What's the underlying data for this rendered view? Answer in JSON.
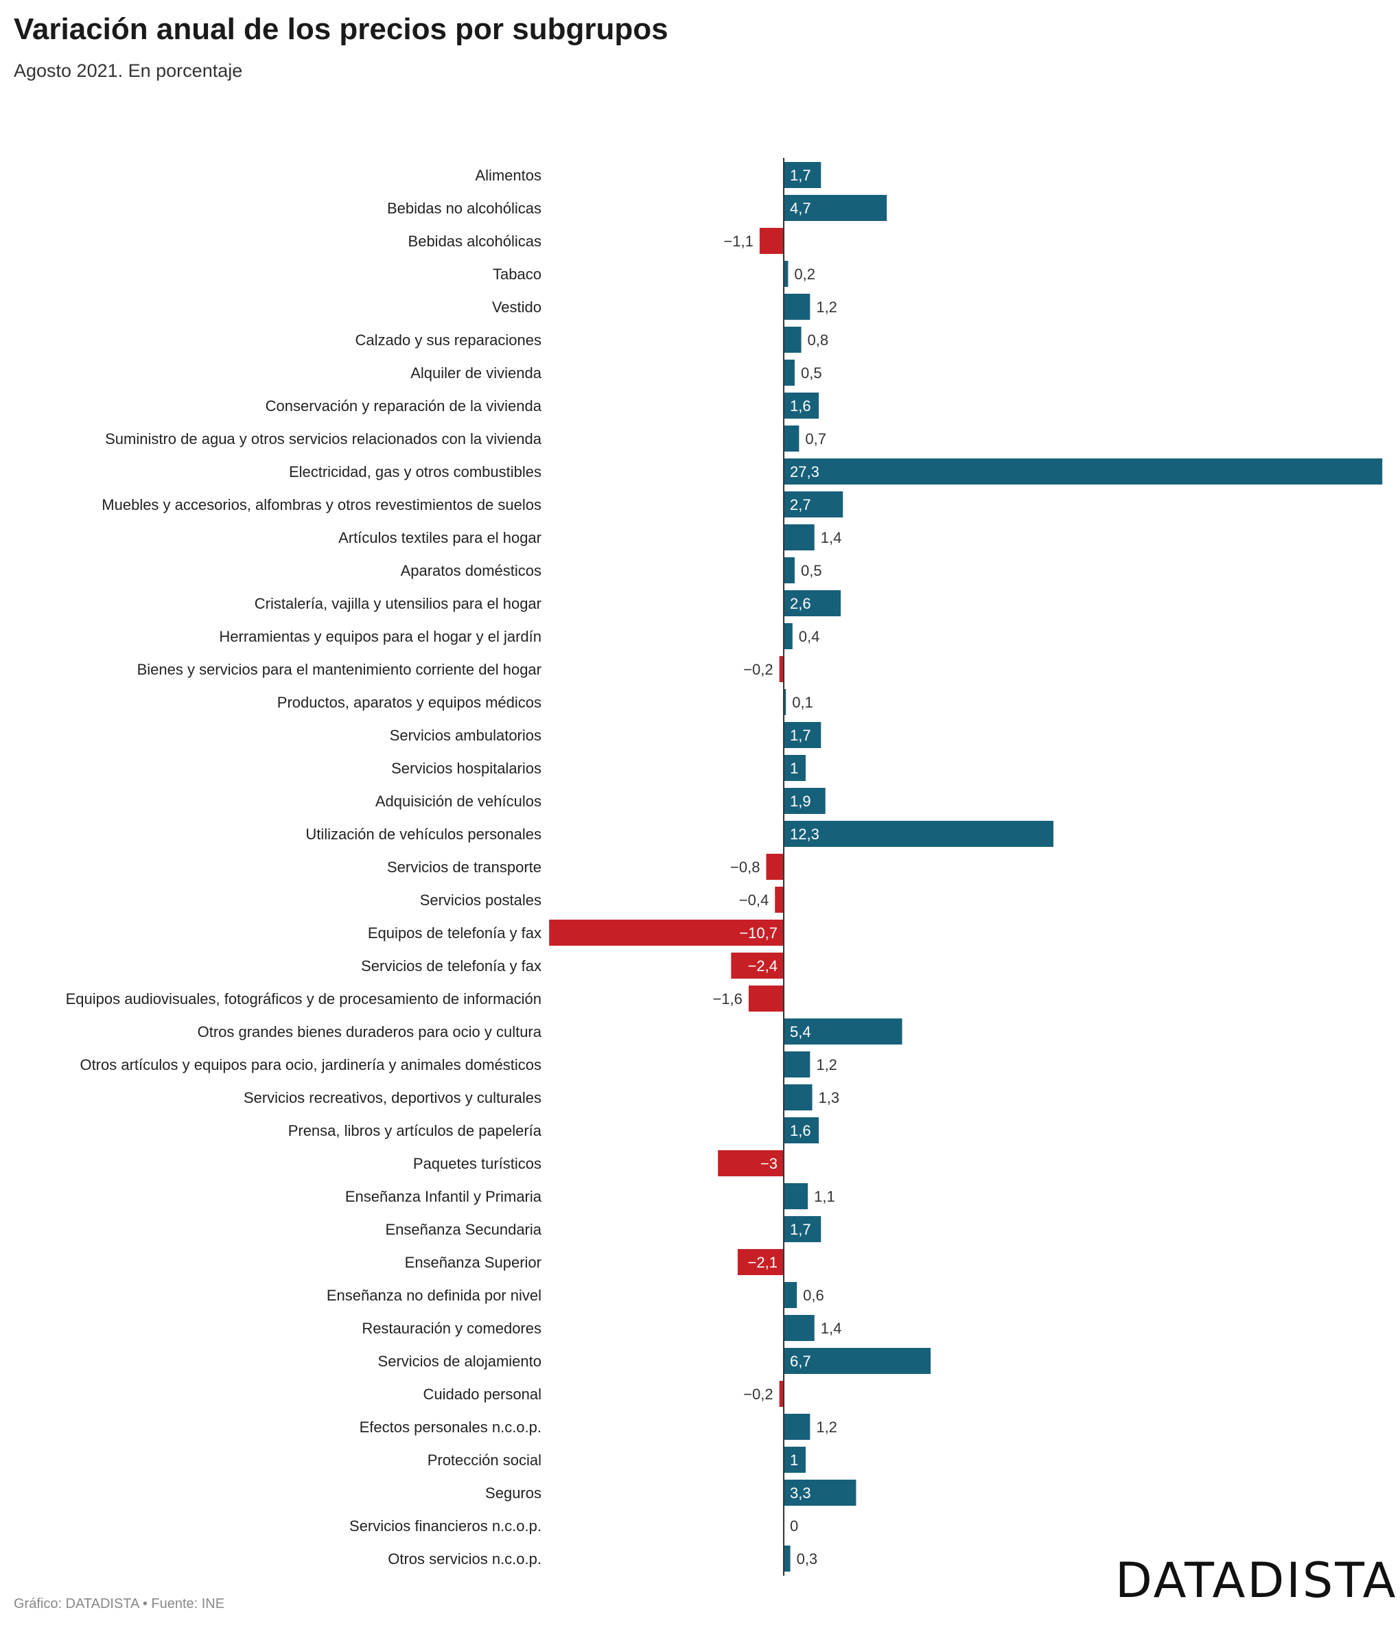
{
  "header": {
    "title": "Variación anual de los precios por subgrupos",
    "subtitle": "Agosto 2021. En porcentaje"
  },
  "footer": {
    "source": "Gráfico: DATADISTA • Fuente: INE",
    "brand": "DATADISTA"
  },
  "colors": {
    "positive": "#17607a",
    "negative": "#c62026",
    "axis": "#333333"
  },
  "chart_data": {
    "type": "bar",
    "orientation": "horizontal",
    "title": "Variación anual de los precios por subgrupos",
    "subtitle": "Agosto 2021. En porcentaje",
    "xlim": [
      -10.7,
      27.3
    ],
    "grid": false,
    "categories": [
      "Alimentos",
      "Bebidas no alcohólicas",
      "Bebidas alcohólicas",
      "Tabaco",
      "Vestido",
      "Calzado y sus reparaciones",
      "Alquiler de vivienda",
      "Conservación y reparación de la vivienda",
      "Suministro de agua y otros servicios relacionados con la vivienda",
      "Electricidad, gas y otros combustibles",
      "Muebles y accesorios, alfombras y otros revestimientos de suelos",
      "Artículos textiles para el hogar",
      "Aparatos domésticos",
      "Cristalería, vajilla y utensilios para el hogar",
      "Herramientas y equipos para el hogar y el jardín",
      "Bienes y servicios para el mantenimiento corriente del hogar",
      "Productos, aparatos y equipos médicos",
      "Servicios ambulatorios",
      "Servicios hospitalarios",
      "Adquisición de vehículos",
      "Utilización de vehículos personales",
      "Servicios de transporte",
      "Servicios postales",
      "Equipos de telefonía y fax",
      "Servicios de telefonía y fax",
      "Equipos audiovisuales, fotográficos y de procesamiento de información",
      "Otros grandes bienes duraderos para ocio y cultura",
      "Otros artículos y equipos para ocio, jardinería y animales domésticos",
      "Servicios recreativos, deportivos y culturales",
      "Prensa, libros y artículos de papelería",
      "Paquetes turísticos",
      "Enseñanza Infantil y Primaria",
      "Enseñanza Secundaria",
      "Enseñanza Superior",
      "Enseñanza no definida por nivel",
      "Restauración y comedores",
      "Servicios de alojamiento",
      "Cuidado personal",
      "Efectos personales n.c.o.p.",
      "Protección social",
      "Seguros",
      "Servicios financieros n.c.o.p.",
      "Otros servicios n.c.o.p."
    ],
    "values": [
      1.7,
      4.7,
      -1.1,
      0.2,
      1.2,
      0.8,
      0.5,
      1.6,
      0.7,
      27.3,
      2.7,
      1.4,
      0.5,
      2.6,
      0.4,
      -0.2,
      0.1,
      1.7,
      1,
      1.9,
      12.3,
      -0.8,
      -0.4,
      -10.7,
      -2.4,
      -1.6,
      5.4,
      1.2,
      1.3,
      1.6,
      -3,
      1.1,
      1.7,
      -2.1,
      0.6,
      1.4,
      6.7,
      -0.2,
      1.2,
      1,
      3.3,
      0,
      0.3
    ],
    "value_labels": [
      "1,7",
      "4,7",
      "−1,1",
      "0,2",
      "1,2",
      "0,8",
      "0,5",
      "1,6",
      "0,7",
      "27,3",
      "2,7",
      "1,4",
      "0,5",
      "2,6",
      "0,4",
      "−0,2",
      "0,1",
      "1,7",
      "1",
      "1,9",
      "12,3",
      "−0,8",
      "−0,4",
      "−10,7",
      "−2,4",
      "−1,6",
      "5,4",
      "1,2",
      "1,3",
      "1,6",
      "−3",
      "1,1",
      "1,7",
      "−2,1",
      "0,6",
      "1,4",
      "6,7",
      "−0,2",
      "1,2",
      "1",
      "3,3",
      "0",
      "0,3"
    ]
  }
}
